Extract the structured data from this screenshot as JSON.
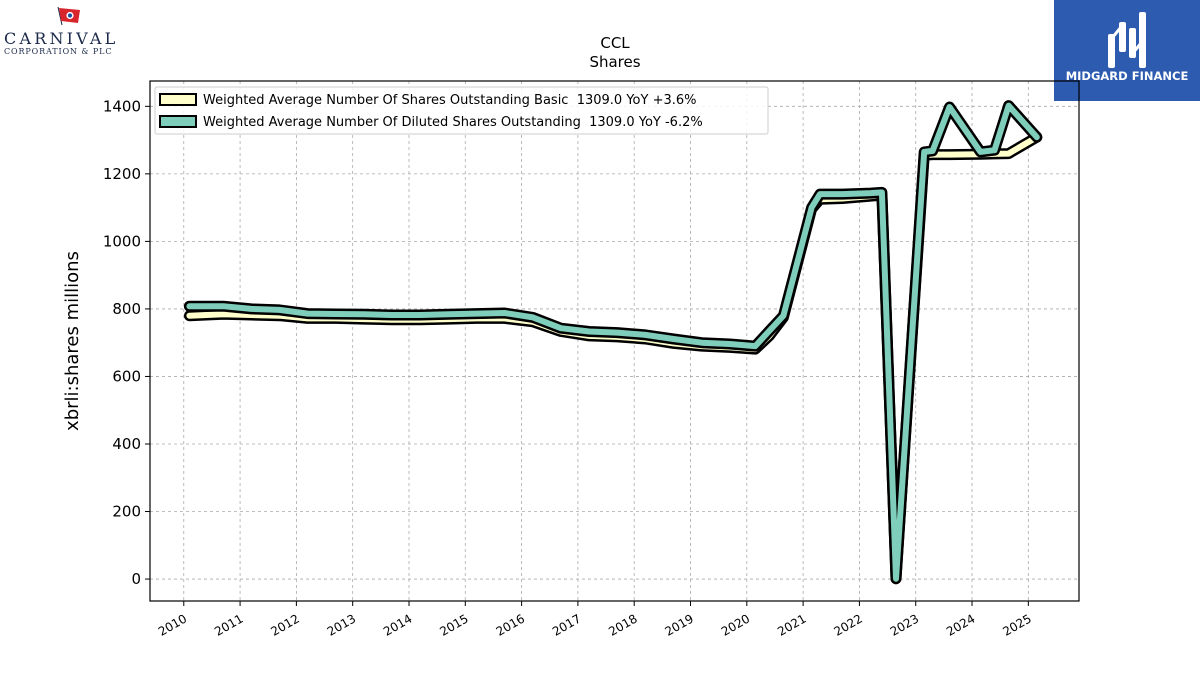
{
  "logos": {
    "left": {
      "name": "CARNIVAL",
      "subtitle": "CORPORATION & PLC"
    },
    "right": {
      "name": "MIDGARD FINANCE"
    }
  },
  "colors": {
    "basic_fill": "#ffffcc",
    "diluted_fill": "#7fcdbb",
    "outline": "#000000",
    "grid": "#aaaaaa",
    "midgard_bg": "#2d5bb0"
  },
  "chart_data": {
    "type": "line",
    "title": "CCL",
    "subtitle": "Shares",
    "ylabel": "xbrli:shares millions",
    "xlabel": "",
    "xlim": [
      2009.4,
      2025.9
    ],
    "ylim": [
      -65,
      1475
    ],
    "yticks": [
      0,
      200,
      400,
      600,
      800,
      1000,
      1200,
      1400
    ],
    "xticks": [
      "2010",
      "2011",
      "2012",
      "2013",
      "2014",
      "2015",
      "2016",
      "2017",
      "2018",
      "2019",
      "2020",
      "2021",
      "2022",
      "2023",
      "2024",
      "2025"
    ],
    "grid": true,
    "legend_position": "top-left",
    "series": [
      {
        "name": "Weighted Average Number Of Shares Outstanding Basic",
        "legend": "Weighted Average Number Of Shares Outstanding Basic  1309.0 YoY +3.6%",
        "x": [
          2010.1,
          2010.7,
          2011.2,
          2011.7,
          2012.2,
          2012.7,
          2013.2,
          2013.7,
          2014.2,
          2014.7,
          2015.2,
          2015.7,
          2016.2,
          2016.7,
          2017.2,
          2017.7,
          2018.2,
          2018.7,
          2019.2,
          2019.7,
          2020.15,
          2020.4,
          2020.65,
          2021.15,
          2021.3,
          2021.7,
          2022.2,
          2022.4,
          2022.65,
          2023.15,
          2023.3,
          2023.6,
          2024.15,
          2024.4,
          2024.65,
          2025.15
        ],
        "y": [
          780,
          784,
          782,
          780,
          772,
          772,
          770,
          768,
          768,
          770,
          772,
          772,
          762,
          733,
          720,
          717,
          711,
          698,
          690,
          686,
          681,
          720,
          775,
          1096,
          1125,
          1127,
          1134,
          1137,
          1,
          1255,
          1257,
          1257,
          1258,
          1259,
          1260,
          1309
        ]
      },
      {
        "name": "Weighted Average Number Of Diluted Shares Outstanding",
        "legend": "Weighted Average Number Of Diluted Shares Outstanding  1309.0 YoY -6.2%",
        "x": [
          2010.1,
          2010.7,
          2011.2,
          2011.7,
          2012.2,
          2012.7,
          2013.2,
          2013.7,
          2014.2,
          2014.7,
          2015.2,
          2015.7,
          2016.2,
          2016.7,
          2017.2,
          2017.7,
          2018.2,
          2018.7,
          2019.2,
          2019.7,
          2020.15,
          2020.4,
          2020.65,
          2021.15,
          2021.3,
          2021.7,
          2022.2,
          2022.4,
          2022.65,
          2023.15,
          2023.3,
          2023.6,
          2024.15,
          2024.4,
          2024.65,
          2025.15
        ],
        "y": [
          808,
          808,
          800,
          797,
          786,
          785,
          784,
          782,
          782,
          784,
          786,
          788,
          775,
          743,
          733,
          730,
          723,
          711,
          700,
          696,
          690,
          735,
          780,
          1100,
          1140,
          1140,
          1143,
          1145,
          1,
          1265,
          1268,
          1398,
          1265,
          1270,
          1402,
          1309
        ]
      }
    ]
  }
}
